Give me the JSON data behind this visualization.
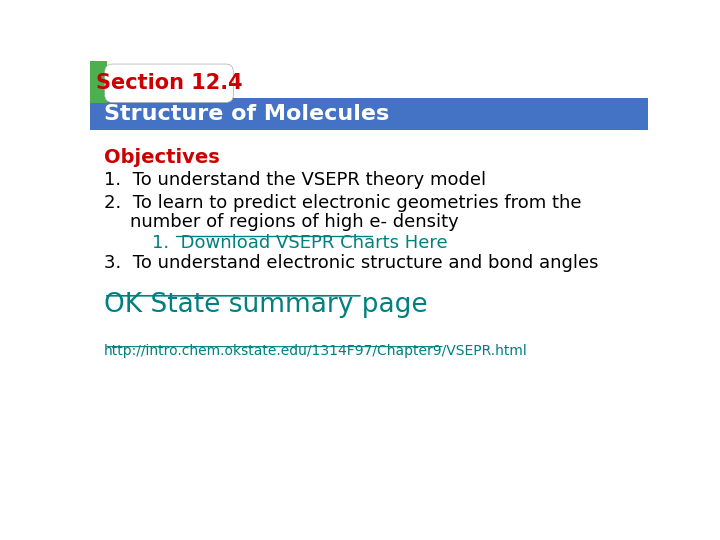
{
  "bg_color": "#ffffff",
  "header_tab_text": "Section 12.4",
  "header_tab_text_color": "#cc0000",
  "header_bar_color": "#4472c4",
  "header_bar_text": "Structure of Molecules",
  "header_bar_text_color": "#ffffff",
  "green_rect_color": "#4caf50",
  "objectives_label": "Objectives",
  "objectives_color": "#cc0000",
  "body_text_color": "#000000",
  "link_color": "#008080",
  "item1": "To understand the VSEPR theory model",
  "item2a": "To learn to predict electronic geometries from the",
  "item2b": "number of regions of high e- density",
  "item2_sub": "Download VSEPR Charts Here",
  "item3": "To understand electronic structure and bond angles",
  "ok_state_text": "OK State summary page",
  "url_text": "http://intro.chem.okstate.edu/1314F97/Chapter9/VSEPR.html"
}
